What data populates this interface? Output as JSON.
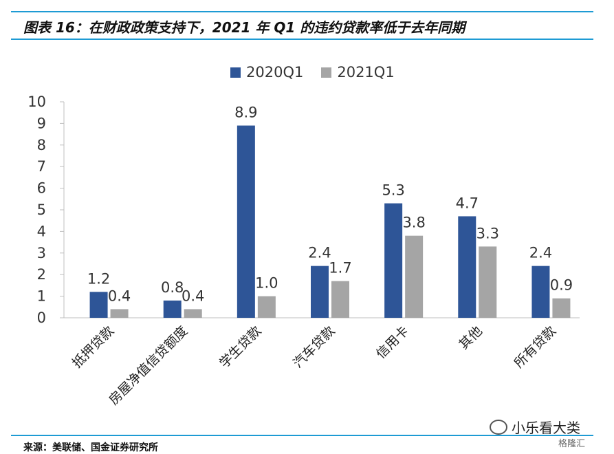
{
  "header": {
    "title": "图表 16：在财政政策支持下，2021 年 Q1 的违约贷款率低于去年同期"
  },
  "chart_data": {
    "type": "bar",
    "categories": [
      "抵押贷款",
      "房屋净值信贷额度",
      "学生贷款",
      "汽车贷款",
      "信用卡",
      "其他",
      "所有贷款"
    ],
    "series": [
      {
        "name": "2020Q1",
        "values": [
          1.2,
          0.8,
          8.9,
          2.4,
          5.3,
          4.7,
          2.4
        ],
        "color": "#2e5597",
        "labels": [
          "1.2",
          "0.8",
          "8.9",
          "2.4",
          "5.3",
          "4.7",
          "2.4"
        ]
      },
      {
        "name": "2021Q1",
        "values": [
          0.4,
          0.4,
          1.0,
          1.7,
          3.8,
          3.3,
          0.9
        ],
        "color": "#a5a5a5",
        "labels": [
          "0.4",
          "0.4",
          "1.0",
          "1.7",
          "3.8",
          "3.3",
          "0.9"
        ]
      }
    ],
    "ylim": [
      0,
      10
    ],
    "yticks": [
      "0",
      "1",
      "2",
      "3",
      "4",
      "5",
      "6",
      "7",
      "8",
      "9",
      "10"
    ],
    "grid": false,
    "legend_position": "top-center"
  },
  "footer": {
    "source": "来源：美联储、国金证券研究所",
    "watermark": "小乐看大类",
    "watermark2": "格隆汇"
  }
}
